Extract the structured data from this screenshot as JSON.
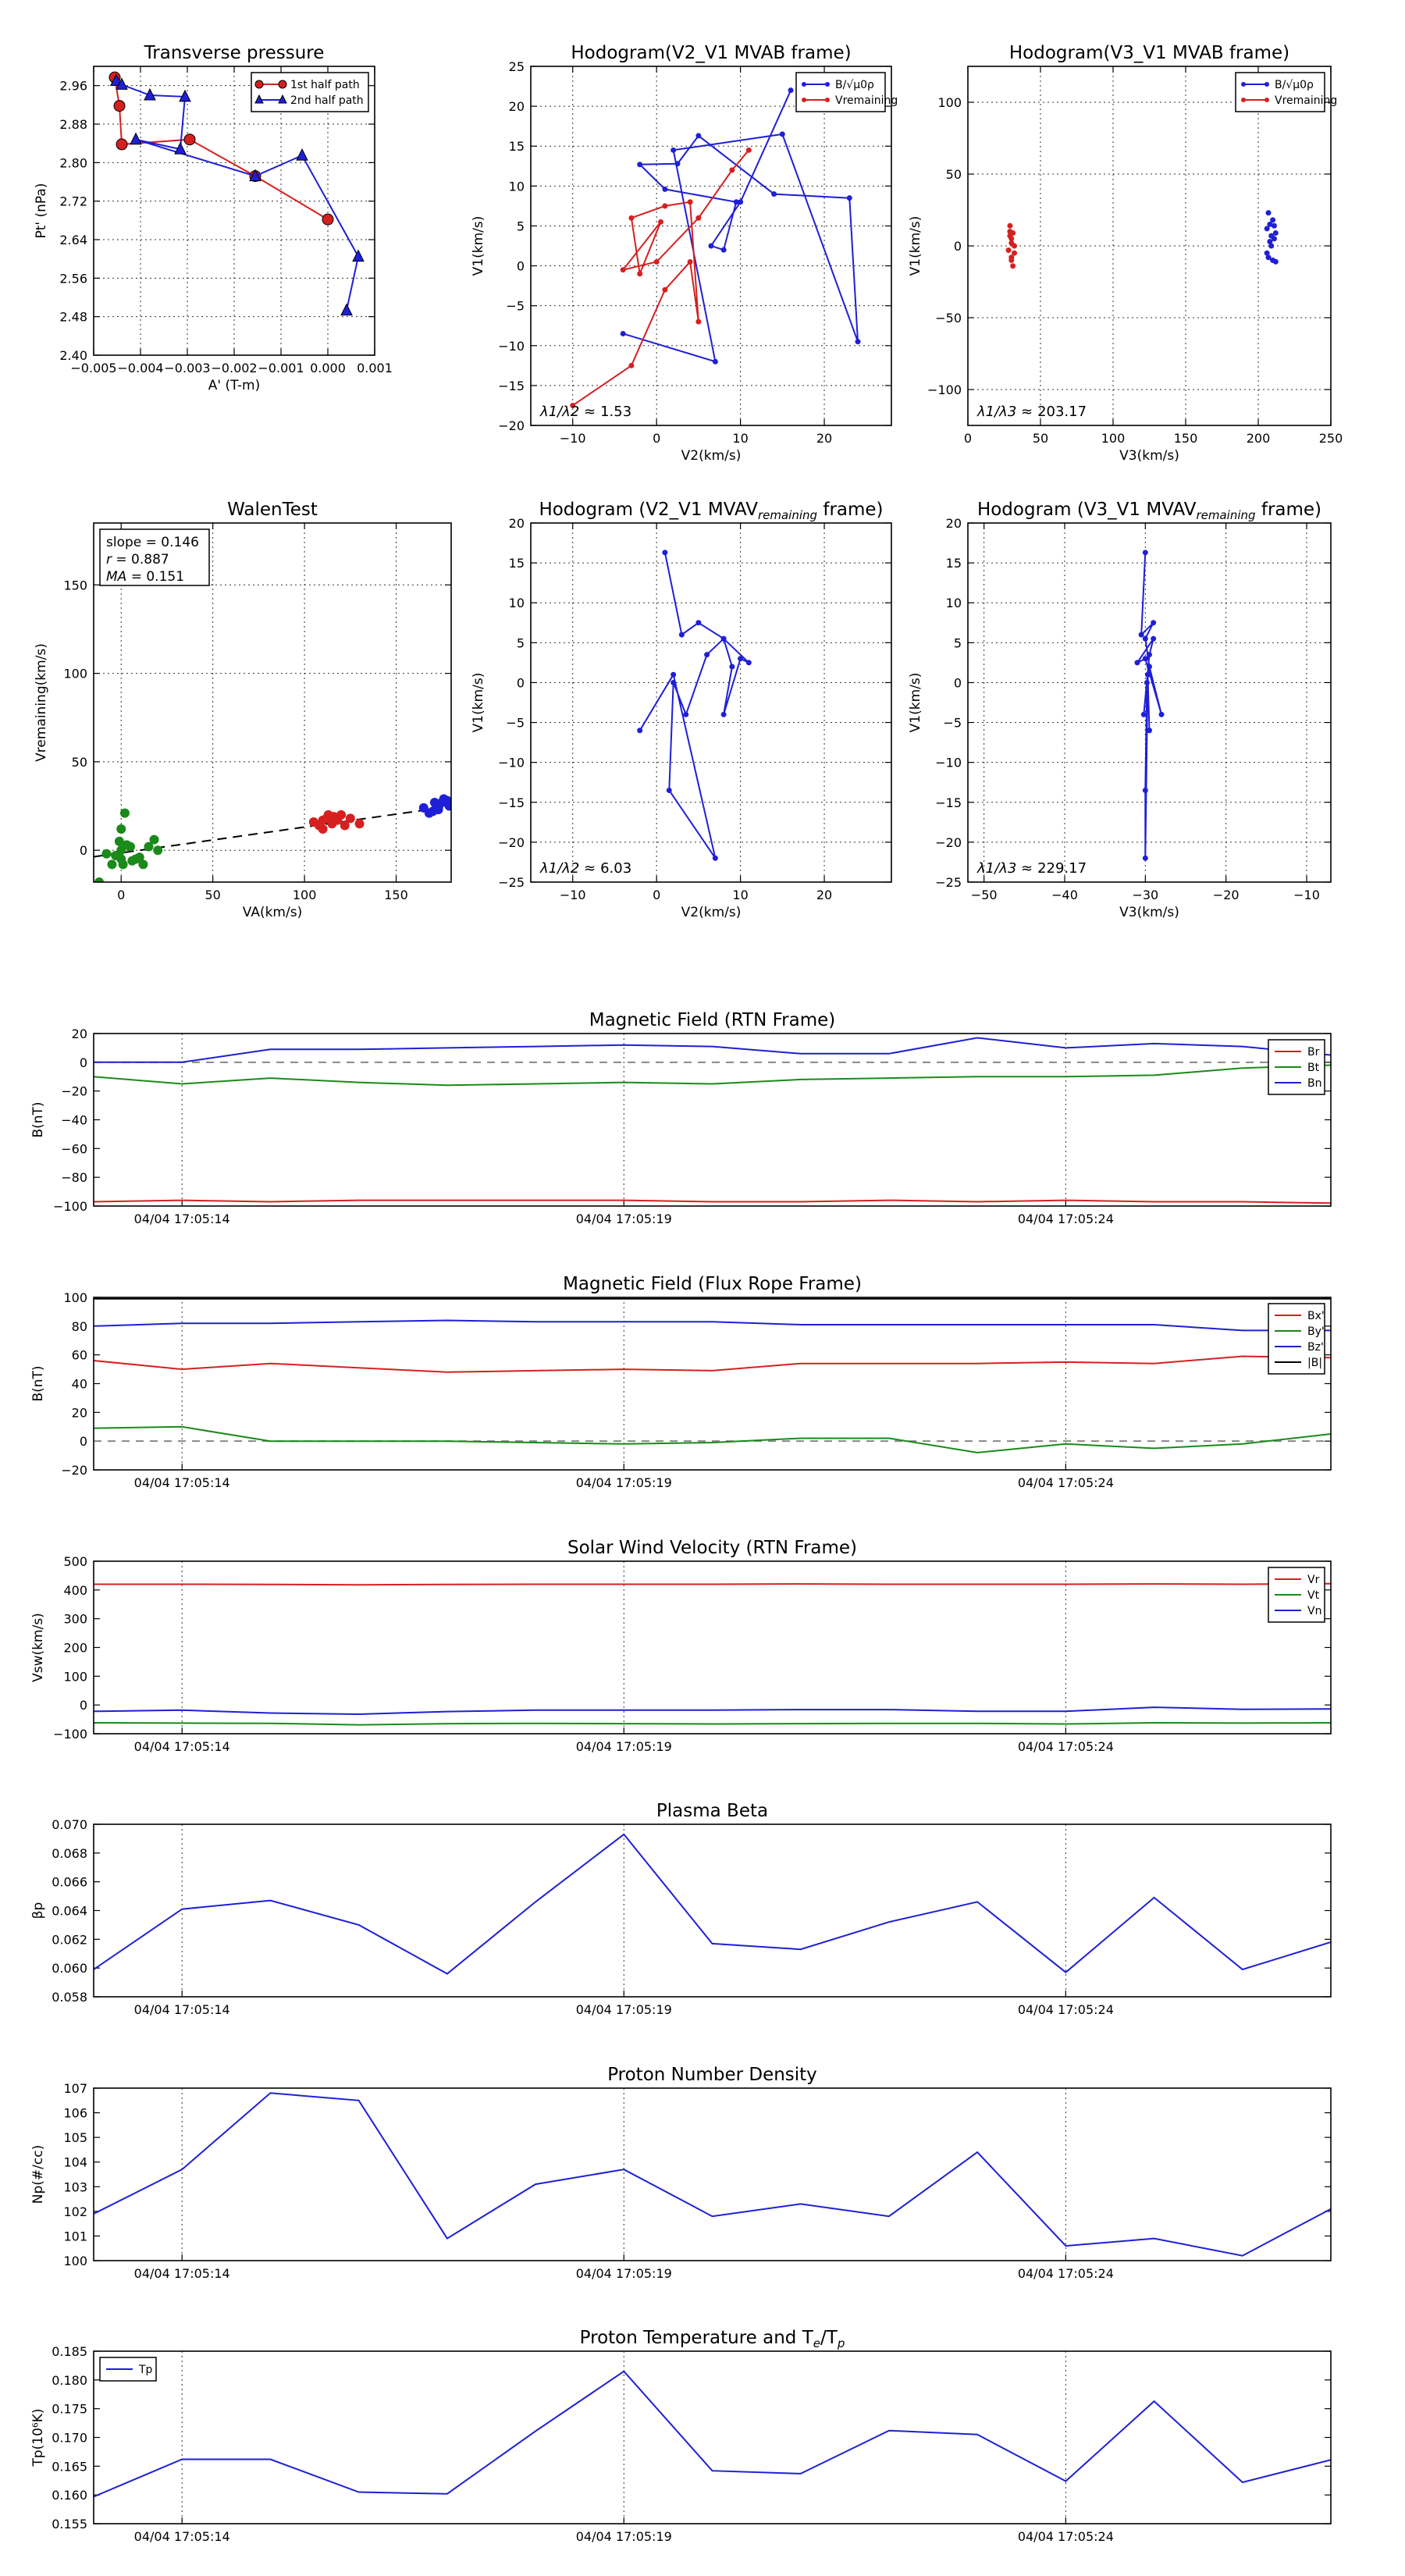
{
  "chart_data": [
    {
      "id": "tp",
      "type": "line",
      "title": "Transverse pressure",
      "xlabel": "A' (T-m)",
      "ylabel": "Pt' (nPa)",
      "xlim": [
        -0.005,
        0.001
      ],
      "ylim": [
        2.4,
        3.0
      ],
      "xticks": [
        "−0.005",
        "−0.004",
        "−0.003",
        "−0.002",
        "−0.001",
        "0.000",
        "0.001"
      ],
      "yticks": [
        "2.40",
        "2.48",
        "2.56",
        "2.64",
        "2.72",
        "2.80",
        "2.88",
        "2.96"
      ],
      "legend_position": "top-right",
      "series": [
        {
          "name": "1st half path",
          "color": "#d62020",
          "marker": "circle",
          "x": [
            -0.00455,
            -0.00445,
            -0.0044,
            -0.00295,
            -0.00155,
            0.0
          ],
          "y": [
            2.977,
            2.918,
            2.838,
            2.848,
            2.772,
            2.682
          ]
        },
        {
          "name": "2nd half path",
          "color": "#1f1fd6",
          "marker": "triangle",
          "x": [
            -0.00452,
            -0.0044,
            -0.0038,
            -0.00305,
            -0.00315,
            -0.0041,
            -0.00155,
            -0.00055,
            0.00065,
            0.0004
          ],
          "y": [
            2.97,
            2.962,
            2.94,
            2.937,
            2.828,
            2.848,
            2.772,
            2.815,
            2.605,
            2.493
          ]
        }
      ]
    },
    {
      "id": "h1",
      "type": "line",
      "title": "Hodogram(V2_V1 MVAB frame)",
      "xlabel": "V2(km/s)",
      "ylabel": "V1(km/s)",
      "xlim": [
        -15,
        28
      ],
      "ylim": [
        -20,
        25
      ],
      "xticks": [
        "−10",
        "0",
        "10",
        "20"
      ],
      "yticks": [
        "−20",
        "−15",
        "−10",
        "−5",
        "0",
        "5",
        "10",
        "15",
        "20",
        "25"
      ],
      "annotation_label": "λ1/λ2 ≈",
      "annotation_value": "1.53",
      "legend_position": "top-right",
      "series": [
        {
          "name": "B/√μ0ρ",
          "color": "#1f1fd6",
          "x": [
            -4,
            7,
            2,
            15,
            24,
            23,
            14,
            5,
            2.5,
            -2,
            1,
            9.5,
            8,
            6.5,
            10,
            16
          ],
          "y": [
            -8.5,
            -12,
            14.5,
            16.5,
            -9.5,
            8.5,
            9,
            16.3,
            12.8,
            12.7,
            9.6,
            8,
            2,
            2.5,
            8,
            22
          ]
        },
        {
          "name": "Vremaining",
          "color": "#d62020",
          "x": [
            -10,
            -3,
            1,
            4,
            5,
            4,
            1,
            -3,
            -2,
            0.5,
            -4,
            0,
            5,
            9,
            11
          ],
          "y": [
            -17.5,
            -12.5,
            -3,
            0.5,
            -7,
            8,
            7.5,
            6,
            -1,
            5.5,
            -0.5,
            0.5,
            6,
            12,
            14.5
          ]
        }
      ]
    },
    {
      "id": "h2",
      "type": "scatter",
      "title": "Hodogram(V3_V1 MVAB frame)",
      "xlabel": "V3(km/s)",
      "ylabel": "V1(km/s)",
      "xlim": [
        0,
        250
      ],
      "ylim": [
        -125,
        125
      ],
      "xticks": [
        "0",
        "50",
        "100",
        "150",
        "200",
        "250"
      ],
      "yticks": [
        "−100",
        "−50",
        "0",
        "50",
        "100"
      ],
      "annotation_label": "λ1/λ3 ≈",
      "annotation_value": "203.17",
      "legend_position": "top-right",
      "series": [
        {
          "name": "B/√μ0ρ",
          "color": "#1f1fd6",
          "x": [
            207,
            210,
            206,
            212,
            208,
            211,
            209,
            207,
            210,
            208,
            211,
            209,
            206,
            212
          ],
          "y": [
            23,
            18,
            12,
            9,
            15,
            5,
            0,
            -8,
            -10,
            3,
            14,
            7,
            -5,
            -11
          ]
        },
        {
          "name": "Vremaining",
          "color": "#d62020",
          "x": [
            29,
            31,
            30,
            32,
            28,
            30,
            31,
            29,
            30,
            32,
            29,
            30
          ],
          "y": [
            14,
            9,
            5,
            0,
            -3,
            -8,
            -14,
            7,
            2,
            -5,
            10,
            -10
          ]
        }
      ]
    },
    {
      "id": "walen",
      "type": "scatter",
      "title": "WalenTest",
      "xlabel": "VA(km/s)",
      "ylabel": "Vremaining(km/s)",
      "xlim": [
        -15,
        180
      ],
      "ylim": [
        -18,
        185
      ],
      "xticks": [
        "0",
        "50",
        "100",
        "150"
      ],
      "yticks": [
        "0",
        "50",
        "100",
        "150"
      ],
      "stats": {
        "slope": "0.146",
        "r": "0.887",
        "ma": "0.151"
      },
      "fit_line": {
        "slope": 0.146,
        "intercept": -1.5
      },
      "series": [
        {
          "name": "green",
          "color": "#1a8a1a",
          "x": [
            -12,
            -5,
            -3,
            0,
            0,
            2,
            5,
            8,
            12,
            18,
            -8,
            0,
            3,
            10,
            20,
            -1,
            1,
            6,
            15
          ],
          "y": [
            -18,
            -8,
            -3,
            0,
            12,
            21,
            2,
            -5,
            -8,
            6,
            -2,
            -5,
            3,
            -4,
            0,
            5,
            -8,
            -6,
            2
          ]
        },
        {
          "name": "red",
          "color": "#d62020",
          "x": [
            105,
            108,
            110,
            112,
            115,
            118,
            120,
            125,
            130,
            113,
            116,
            110,
            122
          ],
          "y": [
            16,
            14,
            12,
            18,
            15,
            17,
            20,
            18,
            15,
            20,
            19,
            17,
            14
          ]
        },
        {
          "name": "blue",
          "color": "#1f1fd6",
          "x": [
            165,
            170,
            172,
            175,
            178,
            180,
            168,
            173,
            176,
            179,
            171
          ],
          "y": [
            24,
            22,
            25,
            27,
            28,
            26,
            21,
            23,
            29,
            25,
            27
          ]
        }
      ]
    },
    {
      "id": "h3",
      "type": "line",
      "title": "Hodogram (V2_V1 MVAV",
      "title_sub": "remaining",
      "title_end": " frame)",
      "xlabel": "V2(km/s)",
      "ylabel": "V1(km/s)",
      "xlim": [
        -15,
        28
      ],
      "ylim": [
        -25,
        20
      ],
      "xticks": [
        "−10",
        "0",
        "10",
        "20"
      ],
      "yticks": [
        "−25",
        "−20",
        "−15",
        "−10",
        "−5",
        "0",
        "5",
        "10",
        "15",
        "20"
      ],
      "annotation_label": "λ1/λ2 ≈",
      "annotation_value": "6.03",
      "series": [
        {
          "name": "",
          "color": "#1f1fd6",
          "x": [
            1,
            3,
            5,
            8,
            9,
            8,
            10,
            11,
            8,
            6,
            3.5,
            2,
            1.5,
            7,
            2,
            -2
          ],
          "y": [
            16.3,
            6,
            7.5,
            5.5,
            2,
            -4,
            3,
            2.5,
            5.5,
            3.5,
            -4,
            0,
            -13.5,
            -22,
            1,
            -6
          ]
        }
      ]
    },
    {
      "id": "h4",
      "type": "line",
      "title": "Hodogram (V3_V1 MVAV",
      "title_sub": "remaining",
      "title_end": " frame)",
      "xlabel": "V3(km/s)",
      "ylabel": "V1(km/s)",
      "xlim": [
        -52,
        -7
      ],
      "ylim": [
        -25,
        20
      ],
      "xticks": [
        "−50",
        "−40",
        "−30",
        "−20",
        "−10"
      ],
      "yticks": [
        "−25",
        "−20",
        "−15",
        "−10",
        "−5",
        "0",
        "5",
        "10",
        "15",
        "20"
      ],
      "annotation_label": "λ1/λ3 ≈",
      "annotation_value": "229.17",
      "series": [
        {
          "name": "",
          "color": "#1f1fd6",
          "x": [
            -30,
            -30.5,
            -29,
            -30,
            -29.5,
            -28,
            -30,
            -31,
            -29,
            -29.5,
            -30.2,
            -29.8,
            -30,
            -30,
            -29.7,
            -29.5
          ],
          "y": [
            16.3,
            6,
            7.5,
            5.5,
            2,
            -4,
            3,
            2.5,
            5.5,
            3.5,
            -4,
            0,
            -13.5,
            -22,
            1,
            -6
          ]
        }
      ]
    },
    {
      "id": "mag_rtn",
      "type": "line",
      "title": "Magnetic Field (RTN Frame)",
      "ylabel": "B(nT)",
      "ylim": [
        -100,
        20
      ],
      "yticks": [
        "−100",
        "−80",
        "−60",
        "−40",
        "−20",
        "0",
        "20"
      ],
      "xticks": [
        "04/04 17:05:14",
        "04/04 17:05:19",
        "04/04 17:05:24"
      ],
      "xtick_pos": [
        1,
        6,
        11
      ],
      "xlim": [
        0,
        14
      ],
      "zero_line": true,
      "legend_position": "top-right",
      "series": [
        {
          "name": "Br",
          "color": "#d62020",
          "values": [
            -97,
            -96,
            -97,
            -96,
            -96,
            -96,
            -96,
            -97,
            -97,
            -96,
            -97,
            -96,
            -97,
            -97,
            -98
          ]
        },
        {
          "name": "Bt",
          "color": "#1a8a1a",
          "values": [
            -10,
            -15,
            -11,
            -14,
            -16,
            -15,
            -14,
            -15,
            -12,
            -11,
            -10,
            -10,
            -9,
            -4,
            -2
          ]
        },
        {
          "name": "Bn",
          "color": "#1f1fd6",
          "values": [
            0,
            0,
            9,
            9,
            10,
            11,
            12,
            11,
            6,
            6,
            17,
            10,
            13,
            11,
            5
          ]
        }
      ]
    },
    {
      "id": "mag_fr",
      "type": "line",
      "title": "Magnetic Field (Flux Rope Frame)",
      "ylabel": "B(nT)",
      "ylim": [
        -20,
        100
      ],
      "yticks": [
        "−20",
        "0",
        "20",
        "40",
        "60",
        "80",
        "100"
      ],
      "xticks": [
        "04/04 17:05:14",
        "04/04 17:05:19",
        "04/04 17:05:24"
      ],
      "xtick_pos": [
        1,
        6,
        11
      ],
      "xlim": [
        0,
        14
      ],
      "zero_line": true,
      "legend_position": "top-right",
      "series": [
        {
          "name": "Bx'",
          "color": "#d62020",
          "values": [
            56,
            50,
            54,
            51,
            48,
            49,
            50,
            49,
            54,
            54,
            54,
            55,
            54,
            59,
            58
          ]
        },
        {
          "name": "By'",
          "color": "#1a8a1a",
          "values": [
            9,
            10,
            0,
            0,
            0,
            -1,
            -2,
            -1,
            2,
            2,
            -8,
            -2,
            -5,
            -2,
            5
          ]
        },
        {
          "name": "Bz'",
          "color": "#1f1fd6",
          "values": [
            80,
            82,
            82,
            83,
            84,
            83,
            83,
            83,
            81,
            81,
            81,
            81,
            81,
            77,
            77
          ]
        },
        {
          "name": "|B|",
          "color": "#000000",
          "values": [
            99,
            99,
            99,
            99,
            99,
            99,
            99,
            99,
            99,
            99,
            99,
            99,
            99,
            99,
            99
          ]
        }
      ]
    },
    {
      "id": "vsw",
      "type": "line",
      "title": "Solar Wind Velocity (RTN Frame)",
      "ylabel": "Vsw(km/s)",
      "ylim": [
        -100,
        500
      ],
      "yticks": [
        "−100",
        "0",
        "100",
        "200",
        "300",
        "400",
        "500"
      ],
      "xticks": [
        "04/04 17:05:14",
        "04/04 17:05:19",
        "04/04 17:05:24"
      ],
      "xtick_pos": [
        1,
        6,
        11
      ],
      "xlim": [
        0,
        14
      ],
      "legend_position": "top-right",
      "series": [
        {
          "name": "Vr",
          "color": "#d62020",
          "values": [
            420,
            420,
            419,
            418,
            419,
            420,
            420,
            420,
            421,
            420,
            420,
            420,
            421,
            420,
            422
          ]
        },
        {
          "name": "Vt",
          "color": "#1a8a1a",
          "values": [
            -62,
            -63,
            -64,
            -69,
            -65,
            -64,
            -65,
            -66,
            -65,
            -64,
            -64,
            -66,
            -62,
            -63,
            -62
          ]
        },
        {
          "name": "Vn",
          "color": "#1f1fd6",
          "values": [
            -22,
            -18,
            -28,
            -32,
            -23,
            -18,
            -18,
            -18,
            -16,
            -16,
            -22,
            -22,
            -8,
            -15,
            -14
          ]
        }
      ]
    },
    {
      "id": "beta",
      "type": "line",
      "title": "Plasma Beta",
      "ylabel": "βp",
      "ylim": [
        0.058,
        0.07
      ],
      "yticks": [
        "0.058",
        "0.060",
        "0.062",
        "0.064",
        "0.066",
        "0.068",
        "0.070"
      ],
      "xticks": [
        "04/04 17:05:14",
        "04/04 17:05:19",
        "04/04 17:05:24"
      ],
      "xtick_pos": [
        1,
        6,
        11
      ],
      "xlim": [
        0,
        14
      ],
      "series": [
        {
          "name": "",
          "color": "#1f1fd6",
          "values": [
            0.0599,
            0.0641,
            0.0647,
            0.063,
            0.0596,
            0.0646,
            0.0693,
            0.0617,
            0.0613,
            0.0632,
            0.0646,
            0.0597,
            0.0649,
            0.0599,
            0.0618
          ]
        }
      ]
    },
    {
      "id": "np",
      "type": "line",
      "title": "Proton Number Density",
      "ylabel": "Np(#/cc)",
      "ylim": [
        100,
        107
      ],
      "yticks": [
        "100",
        "101",
        "102",
        "103",
        "104",
        "105",
        "106",
        "107"
      ],
      "xticks": [
        "04/04 17:05:14",
        "04/04 17:05:19",
        "04/04 17:05:24"
      ],
      "xtick_pos": [
        1,
        6,
        11
      ],
      "xlim": [
        0,
        14
      ],
      "series": [
        {
          "name": "",
          "color": "#1f1fd6",
          "values": [
            101.9,
            103.7,
            106.8,
            106.5,
            100.9,
            103.1,
            103.7,
            101.8,
            102.3,
            101.8,
            104.4,
            100.6,
            100.9,
            100.2,
            102.1
          ]
        }
      ]
    },
    {
      "id": "tpt",
      "type": "line",
      "title": "Proton Temperature and T",
      "title_sub": "e",
      "title_end": "/T",
      "title_sub2": "p",
      "ylabel": "Tp(10⁶K)",
      "ylim": [
        0.155,
        0.185
      ],
      "yticks": [
        "0.155",
        "0.160",
        "0.165",
        "0.170",
        "0.175",
        "0.180",
        "0.185"
      ],
      "xticks": [
        "04/04 17:05:14",
        "04/04 17:05:19",
        "04/04 17:05:24"
      ],
      "xtick_pos": [
        1,
        6,
        11
      ],
      "xlim": [
        0,
        14
      ],
      "legend_position": "top-left",
      "series": [
        {
          "name": "Tp",
          "color": "#1f1fd6",
          "values": [
            0.1597,
            0.1662,
            0.1662,
            0.1605,
            0.1602,
            0.1711,
            0.1815,
            0.1642,
            0.1637,
            0.1712,
            0.1705,
            0.1624,
            0.1763,
            0.1622,
            0.1661
          ]
        }
      ]
    }
  ]
}
